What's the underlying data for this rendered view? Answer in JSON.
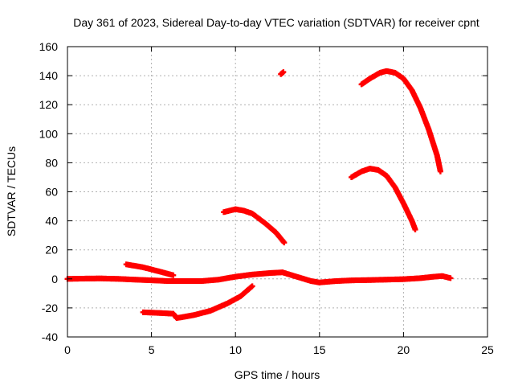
{
  "chart_data": {
    "type": "scatter",
    "title": "Day 361 of 2023, Sidereal Day-to-day VTEC variation (SDTVAR) for receiver cpnt",
    "xlabel": "GPS time / hours",
    "ylabel": "SDTVAR / TECUs",
    "xlim": [
      0,
      25
    ],
    "ylim": [
      -40,
      160
    ],
    "xticks": [
      "0",
      "5",
      "10",
      "15",
      "20",
      "25"
    ],
    "yticks": [
      "-40",
      "-20",
      "0",
      "20",
      "40",
      "60",
      "80",
      "100",
      "120",
      "140",
      "160"
    ],
    "grid": true,
    "marker_color": "#ff0000",
    "series": [
      {
        "name": "track-baseline",
        "points": [
          [
            0,
            0
          ],
          [
            1,
            0.2
          ],
          [
            2,
            0.3
          ],
          [
            3,
            0
          ],
          [
            4,
            -0.5
          ],
          [
            5,
            -1
          ],
          [
            6,
            -1.5
          ],
          [
            7,
            -1.5
          ],
          [
            8,
            -1.5
          ],
          [
            9,
            -0.5
          ],
          [
            10,
            1.5
          ],
          [
            11,
            3
          ],
          [
            12,
            4
          ],
          [
            12.8,
            4.5
          ],
          [
            13.5,
            2
          ],
          [
            14.5,
            -1.5
          ],
          [
            15,
            -2.5
          ],
          [
            16,
            -1.5
          ],
          [
            17,
            -1
          ],
          [
            18,
            -0.8
          ],
          [
            19,
            -0.5
          ],
          [
            20,
            -0.2
          ],
          [
            21,
            0.5
          ],
          [
            21.8,
            1.5
          ],
          [
            22.3,
            2
          ],
          [
            22.8,
            0.5
          ]
        ]
      },
      {
        "name": "track-early-decline",
        "points": [
          [
            3.5,
            10
          ],
          [
            4.5,
            8
          ],
          [
            5.5,
            5
          ],
          [
            6.3,
            2.5
          ]
        ]
      },
      {
        "name": "track-low",
        "points": [
          [
            4.5,
            -23
          ],
          [
            5.5,
            -23.5
          ],
          [
            6.3,
            -24
          ],
          [
            6.5,
            -27
          ],
          [
            7.5,
            -25
          ],
          [
            8.5,
            -22
          ],
          [
            9.5,
            -17
          ],
          [
            10.3,
            -12
          ],
          [
            11,
            -5
          ]
        ]
      },
      {
        "name": "track-arc-45",
        "points": [
          [
            9.3,
            46
          ],
          [
            10,
            48
          ],
          [
            10.5,
            47
          ],
          [
            11,
            45
          ],
          [
            11.8,
            38
          ],
          [
            12.4,
            32
          ],
          [
            12.9,
            25
          ]
        ]
      },
      {
        "name": "track-point-142",
        "points": [
          [
            12.7,
            141
          ],
          [
            12.85,
            142.5
          ]
        ]
      },
      {
        "name": "track-arc-75",
        "points": [
          [
            16.9,
            70
          ],
          [
            17.5,
            74
          ],
          [
            18,
            76
          ],
          [
            18.5,
            75
          ],
          [
            19,
            71
          ],
          [
            19.5,
            63
          ],
          [
            20,
            52
          ],
          [
            20.5,
            40
          ],
          [
            20.7,
            34
          ]
        ]
      },
      {
        "name": "track-arc-143",
        "points": [
          [
            17.5,
            134
          ],
          [
            18,
            138
          ],
          [
            18.6,
            142
          ],
          [
            19,
            143.2
          ],
          [
            19.5,
            142
          ],
          [
            20,
            138
          ],
          [
            20.5,
            130
          ],
          [
            21,
            118
          ],
          [
            21.5,
            103
          ],
          [
            22,
            85
          ],
          [
            22.2,
            74
          ]
        ]
      }
    ]
  }
}
